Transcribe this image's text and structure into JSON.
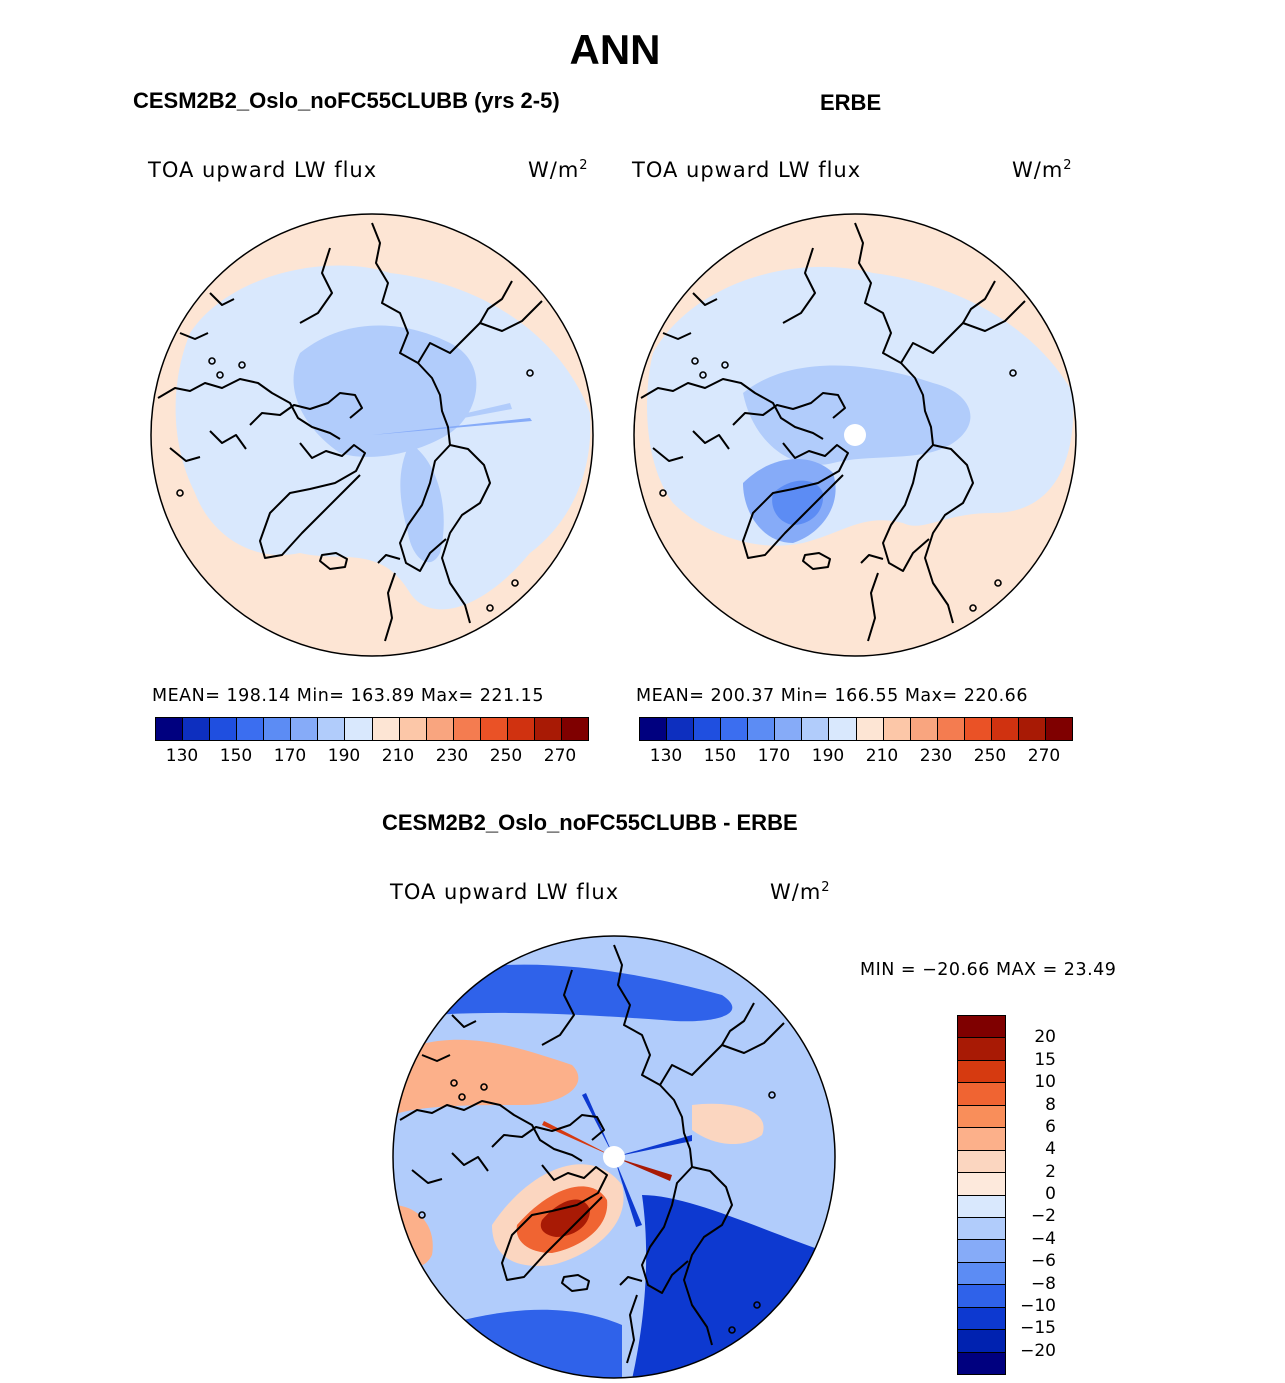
{
  "main_title": "ANN",
  "colors": {
    "abs_levels": [
      "#00007f",
      "#0d2fbf",
      "#1f4fe0",
      "#3b6ef0",
      "#5c8cf4",
      "#86abf8",
      "#b1ccfb",
      "#d9e8fd",
      "#fde5d4",
      "#fcc7a8",
      "#f9a57f",
      "#f47c50",
      "#ea5226",
      "#d03210",
      "#a81a05",
      "#7f0000"
    ],
    "diff_levels": [
      "#7f0000",
      "#a81a05",
      "#d63a10",
      "#f06432",
      "#f98e5a",
      "#fcb08a",
      "#fbd6c0",
      "#fde9dc",
      "#d9e8fd",
      "#b1ccfb",
      "#86abf8",
      "#5c8cf4",
      "#2f62ea",
      "#0d39d0",
      "#0022b0",
      "#00007f"
    ]
  },
  "chart_data": [
    {
      "type": "heatmap",
      "projection": "north polar stereographic",
      "case_title": "CESM2B2_Oslo_noFC55CLUBB (yrs 2-5)",
      "variable": "TOA upward LW flux",
      "units": "W/m",
      "units_exp": "2",
      "stats": {
        "label": "MEAN= 198.14   Min= 163.89   Max= 221.15",
        "mean": 198.14,
        "min": 163.89,
        "max": 221.15
      },
      "colorbar_ticks": [
        "130",
        "150",
        "170",
        "190",
        "210",
        "230",
        "250",
        "270"
      ],
      "levels": [
        130,
        140,
        150,
        160,
        170,
        180,
        190,
        200,
        210,
        220,
        230,
        240,
        250,
        260,
        270
      ]
    },
    {
      "type": "heatmap",
      "projection": "north polar stereographic",
      "case_title": "ERBE",
      "variable": "TOA upward LW flux",
      "units": "W/m",
      "units_exp": "2",
      "stats": {
        "label": "MEAN= 200.37   Min= 166.55   Max= 220.66",
        "mean": 200.37,
        "min": 166.55,
        "max": 220.66
      },
      "colorbar_ticks": [
        "130",
        "150",
        "170",
        "190",
        "210",
        "230",
        "250",
        "270"
      ],
      "levels": [
        130,
        140,
        150,
        160,
        170,
        180,
        190,
        200,
        210,
        220,
        230,
        240,
        250,
        260,
        270
      ]
    },
    {
      "type": "heatmap",
      "projection": "north polar stereographic",
      "case_title": "CESM2B2_Oslo_noFC55CLUBB - ERBE",
      "variable": "TOA upward LW flux",
      "units": "W/m",
      "units_exp": "2",
      "stats": {
        "label": "MIN = −20.66 MAX =   23.49",
        "min": -20.66,
        "max": 23.49
      },
      "colorbar_ticks": [
        "20",
        "15",
        "10",
        "8",
        "6",
        "4",
        "2",
        "0",
        "−2",
        "−4",
        "−6",
        "−8",
        "−10",
        "−15",
        "−20"
      ],
      "levels": [
        -20,
        -15,
        -10,
        -8,
        -6,
        -4,
        -2,
        0,
        2,
        4,
        6,
        8,
        10,
        15,
        20
      ]
    }
  ]
}
